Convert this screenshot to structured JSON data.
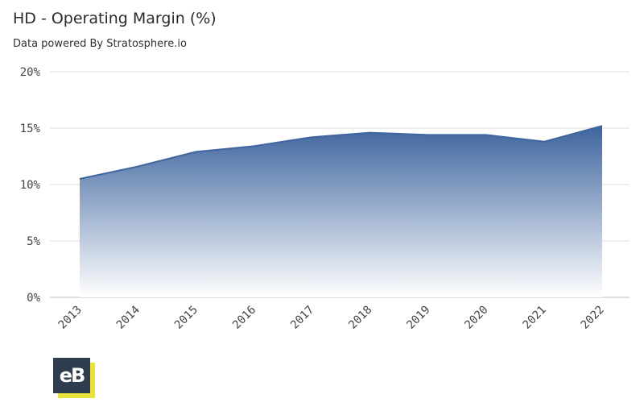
{
  "header": {
    "title": "HD - Operating Margin (%)",
    "subtitle": "Data powered By Stratosphere.io"
  },
  "logo": {
    "text": "eB"
  },
  "chart_data": {
    "type": "area",
    "title": "HD - Operating Margin (%)",
    "x": [
      "2013",
      "2014",
      "2015",
      "2016",
      "2017",
      "2018",
      "2019",
      "2020",
      "2021",
      "2022"
    ],
    "series": [
      {
        "values": [
          10.5,
          11.6,
          12.9,
          13.4,
          14.2,
          14.6,
          14.4,
          14.4,
          13.8,
          15.2
        ]
      }
    ],
    "yticks": [
      "0%",
      "5%",
      "10%",
      "15%",
      "20%"
    ],
    "ylim": [
      0,
      20
    ],
    "grid": true,
    "legend": "none",
    "colors": {
      "line": "#3f66a0",
      "fill_top": "#3d649e",
      "fill_bottom": "#ffffff"
    }
  }
}
